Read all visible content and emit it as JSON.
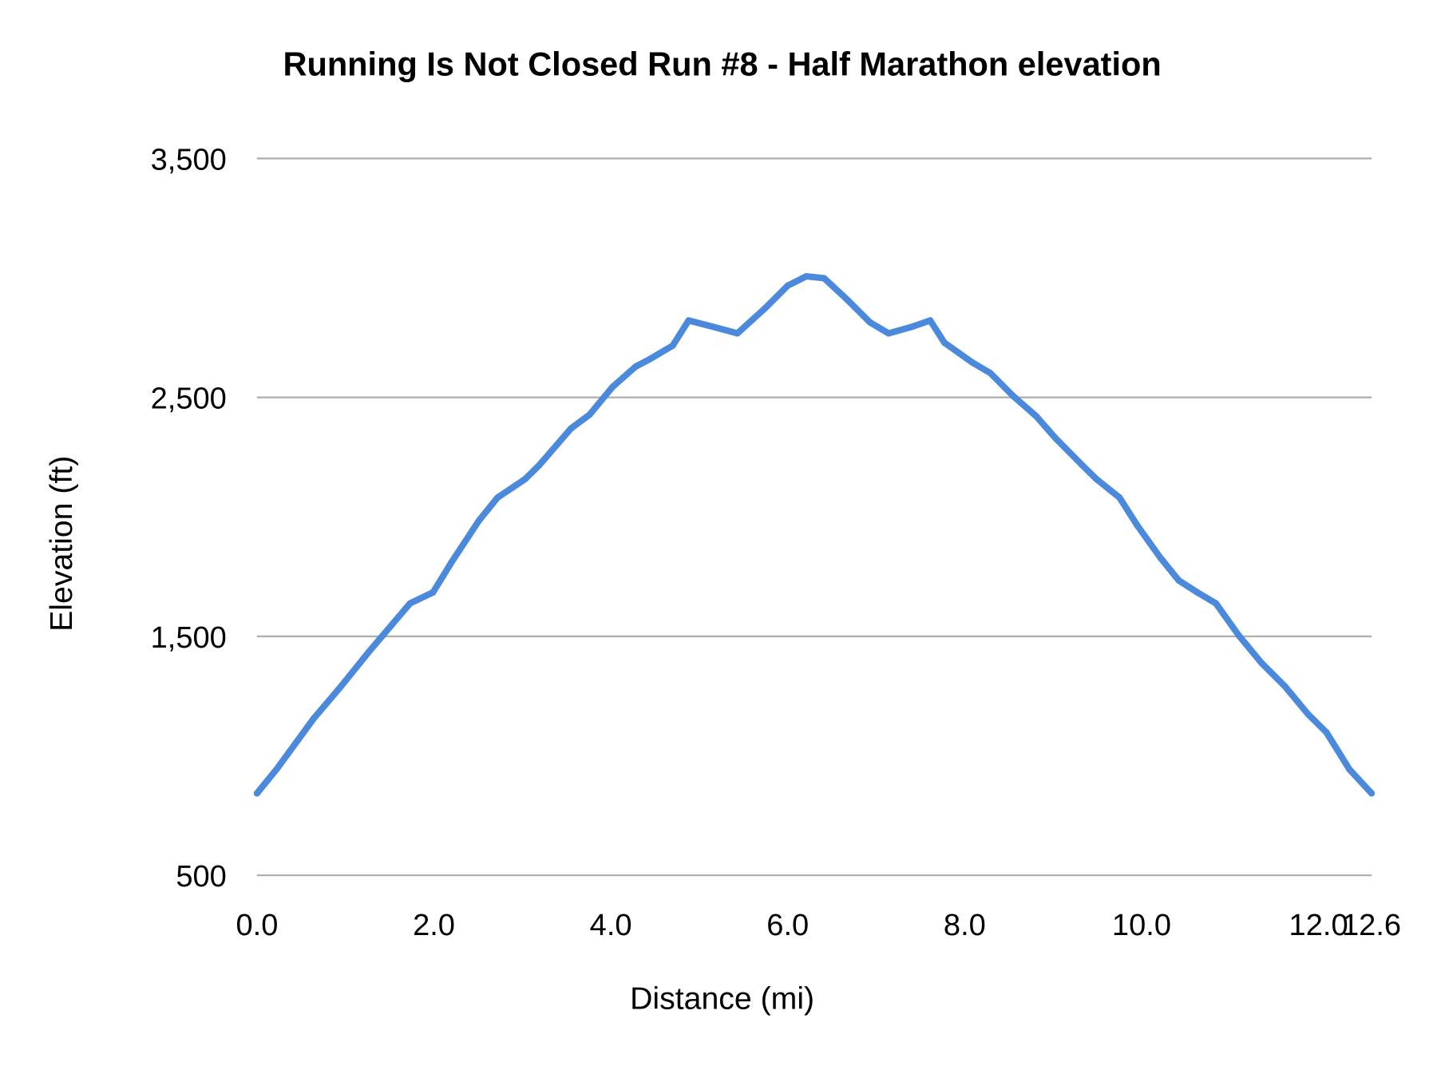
{
  "chart_data": {
    "type": "line",
    "title": "Running Is Not Closed Run #8 - Half Marathon  elevation",
    "xlabel": "Distance (mi)",
    "ylabel": "Elevation (ft)",
    "xlim": [
      0,
      12.6
    ],
    "ylim": [
      500,
      3500
    ],
    "grid": true,
    "line_color": "#4a89dc",
    "x_ticks": [
      "0.0",
      "2.0",
      "4.0",
      "6.0",
      "8.0",
      "10.0",
      "12.0",
      "12.6"
    ],
    "x_tick_values": [
      0,
      2,
      4,
      6,
      8,
      10,
      12,
      12.6
    ],
    "y_ticks": [
      "500",
      "1,500",
      "2,500",
      "3,500"
    ],
    "y_tick_values": [
      500,
      1500,
      2500,
      3500
    ],
    "series": [
      {
        "name": "Elevation",
        "x": [
          0,
          0.22,
          0.64,
          0.95,
          1.26,
          1.73,
          1.99,
          2.2,
          2.51,
          2.72,
          3.03,
          3.19,
          3.55,
          3.76,
          4.02,
          4.28,
          4.44,
          4.7,
          4.88,
          5.16,
          5.43,
          5.74,
          6.0,
          6.21,
          6.41,
          6.67,
          6.93,
          7.14,
          7.4,
          7.61,
          7.77,
          8.08,
          8.29,
          8.55,
          8.81,
          9.02,
          9.33,
          9.49,
          9.75,
          9.95,
          10.21,
          10.42,
          10.63,
          10.84,
          11.1,
          11.36,
          11.62,
          11.88,
          12.09,
          12.35,
          12.6
        ],
        "y": [
          843,
          943,
          1156,
          1291,
          1433,
          1638,
          1684,
          1811,
          1985,
          2081,
          2158,
          2216,
          2370,
          2428,
          2544,
          2629,
          2660,
          2717,
          2822,
          2795,
          2768,
          2872,
          2968,
          3007,
          2999,
          2910,
          2814,
          2768,
          2795,
          2822,
          2729,
          2648,
          2602,
          2505,
          2421,
          2332,
          2216,
          2158,
          2081,
          1965,
          1830,
          1734,
          1684,
          1638,
          1503,
          1387,
          1291,
          1175,
          1098,
          943,
          843
        ]
      }
    ]
  }
}
